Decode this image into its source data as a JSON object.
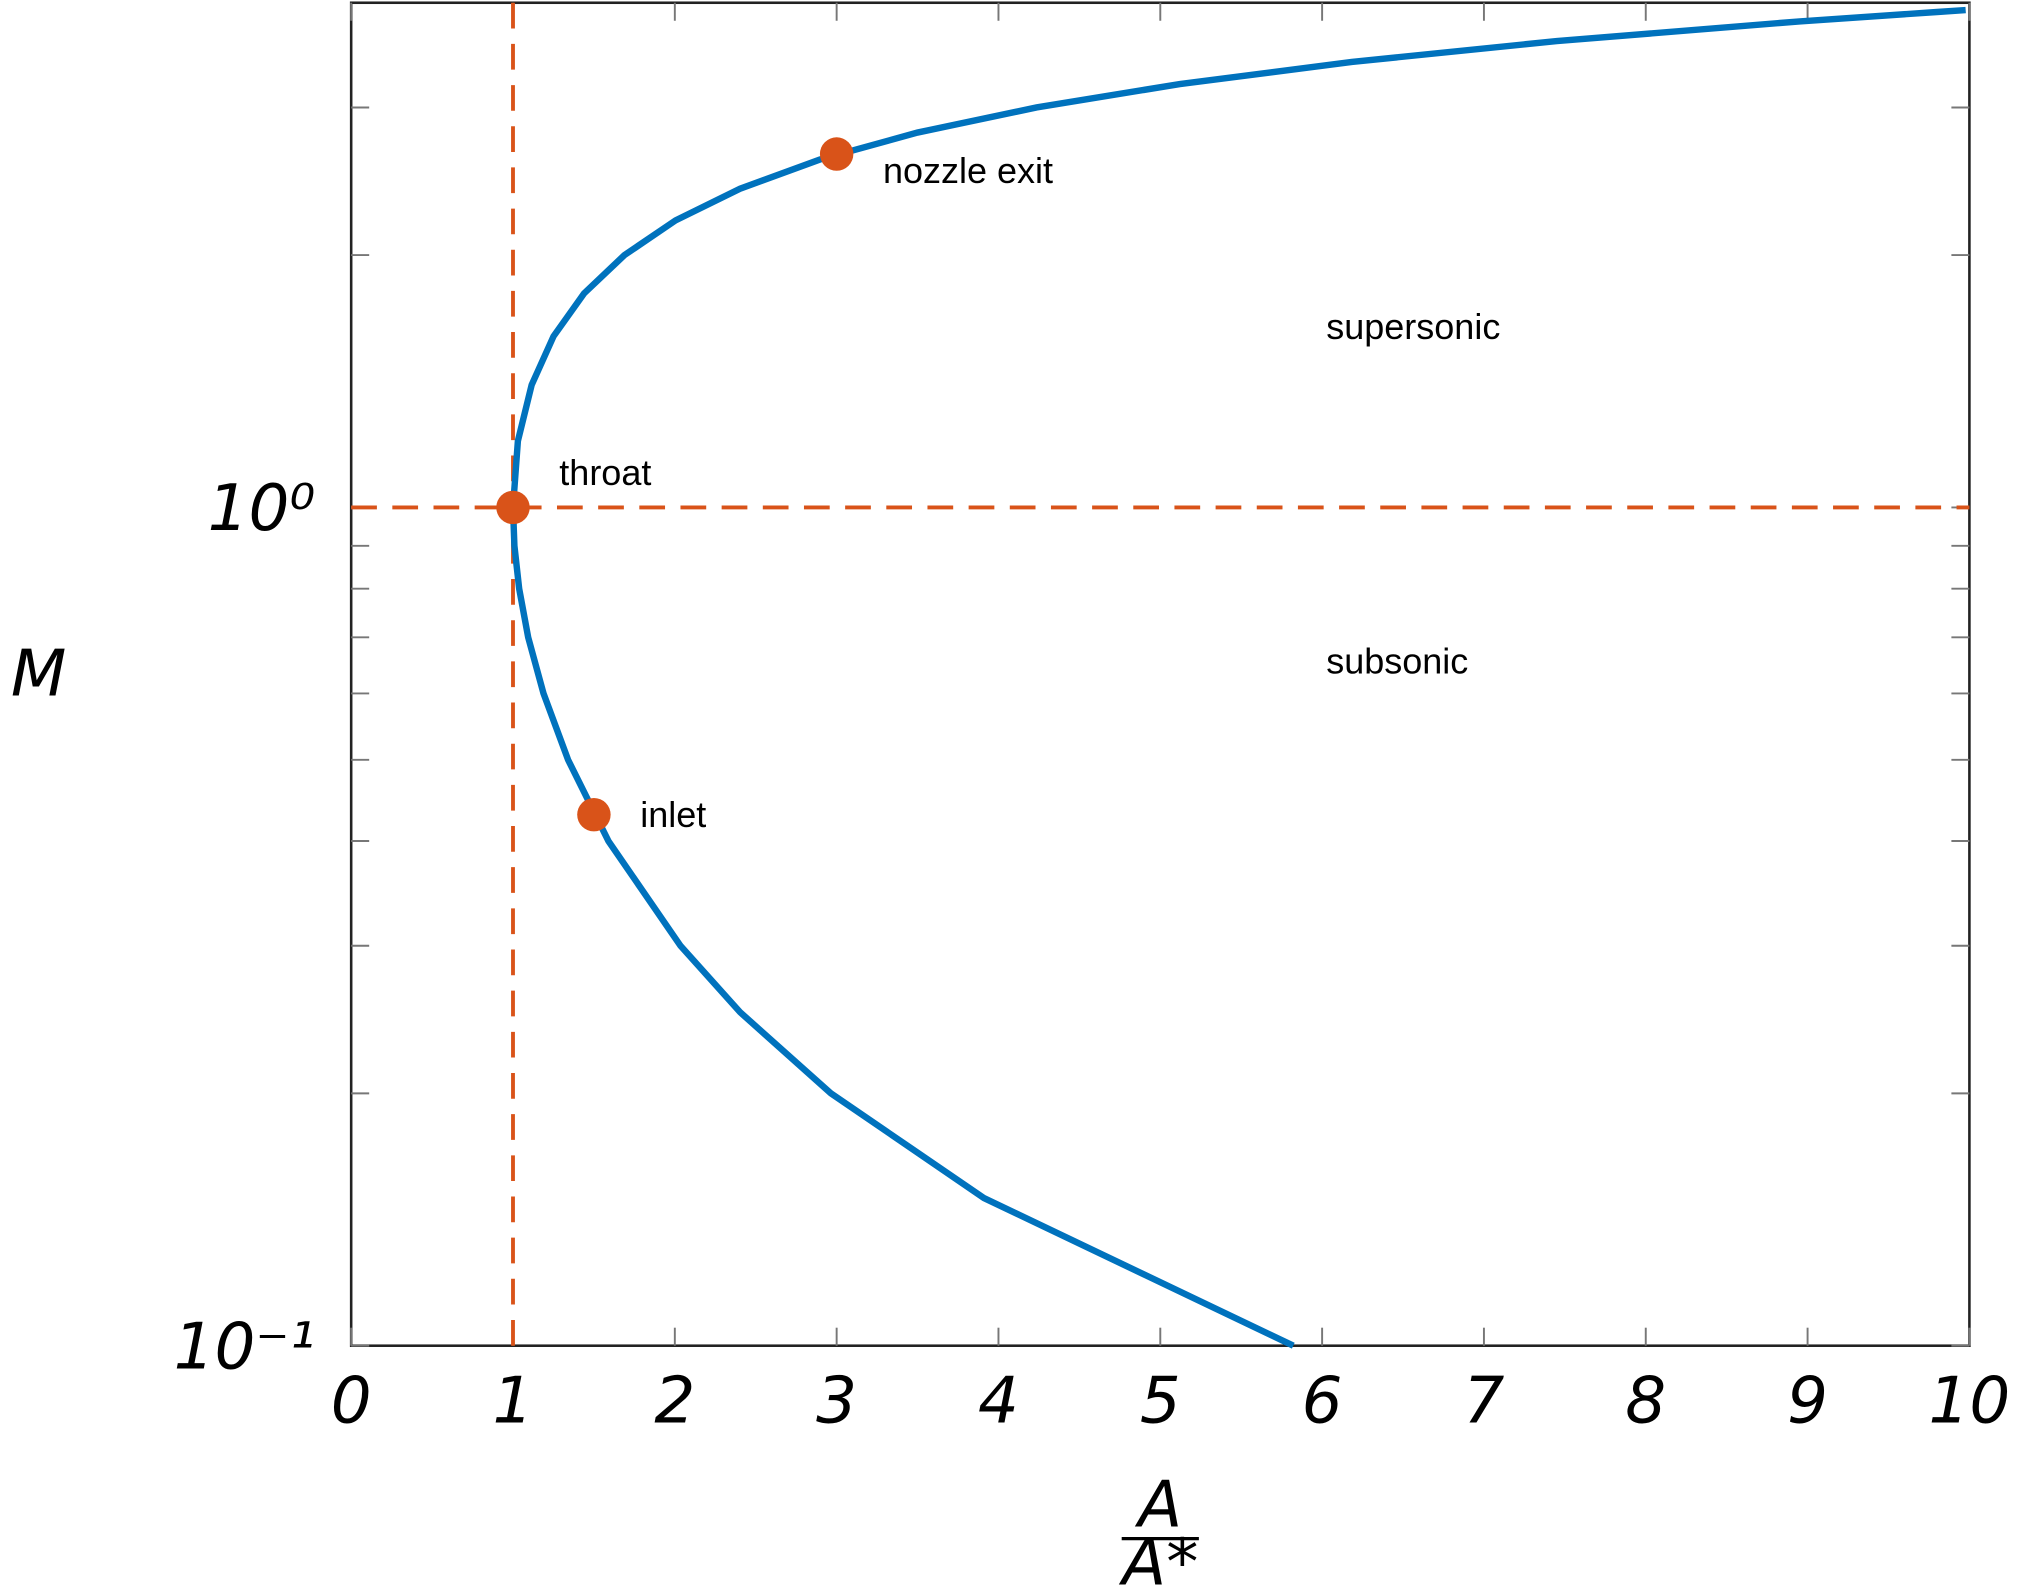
{
  "chart_data": {
    "type": "line",
    "xlabel": {
      "numerator": "A",
      "denominator": "A*"
    },
    "ylabel": "M",
    "xlim": [
      0,
      10
    ],
    "xticks": [
      0,
      1,
      2,
      3,
      4,
      5,
      6,
      7,
      8,
      9,
      10
    ],
    "ylim": [
      0.1,
      4
    ],
    "yscale": "log",
    "yticks": [
      {
        "value": 0.1,
        "label": "10⁻¹"
      },
      {
        "value": 1,
        "label": "10⁰"
      }
    ],
    "yminorticks": [
      0.2,
      0.3,
      0.4,
      0.5,
      0.6,
      0.7,
      0.8,
      0.9,
      2,
      3
    ],
    "series": [
      {
        "color": "#0072bd",
        "x": [
          5.822,
          3.91,
          2.964,
          2.403,
          2.035,
          1.59,
          1.34,
          1.188,
          1.094,
          1.038,
          1.009,
          1.0,
          1.03,
          1.115,
          1.25,
          1.439,
          1.688,
          2.005,
          2.403,
          2.896,
          3.5,
          4.235,
          5.121,
          6.184,
          7.45,
          8.951,
          9.8,
          9.977
        ],
        "values": [
          0.1,
          0.15,
          0.2,
          0.25,
          0.3,
          0.4,
          0.5,
          0.6,
          0.7,
          0.8,
          0.9,
          1.0,
          1.2,
          1.4,
          1.6,
          1.8,
          2.0,
          2.2,
          2.4,
          2.6,
          2.8,
          3.0,
          3.2,
          3.4,
          3.6,
          3.8,
          3.9,
          3.92
        ]
      }
    ],
    "points": {
      "color": "#d95319",
      "x": [
        1,
        1.5,
        3
      ],
      "values": [
        1,
        0.43,
        2.64
      ],
      "labels": [
        "throat",
        "inlet",
        "nozzle exit"
      ]
    },
    "reference_lines": {
      "color": "#d95319",
      "x": 1,
      "y": 1
    },
    "annotations": [
      "supersonic",
      "subsonic"
    ]
  }
}
